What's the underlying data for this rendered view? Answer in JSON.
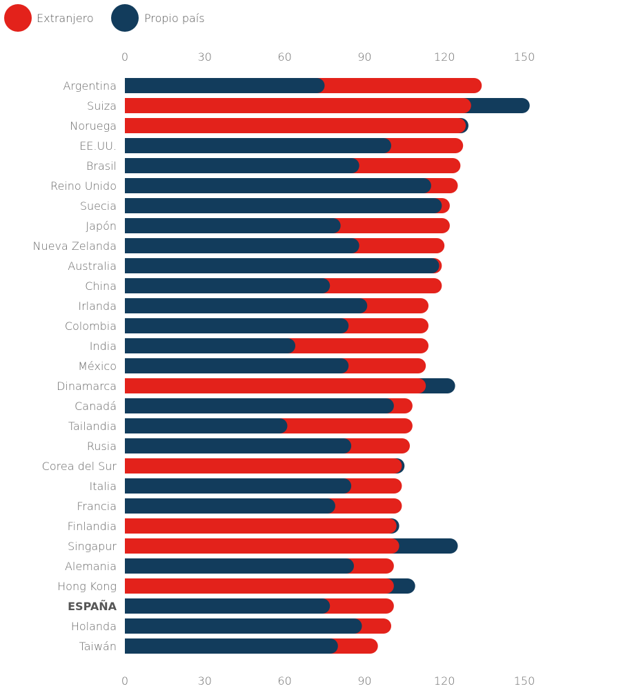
{
  "colors": {
    "foreign": "#e3221b",
    "own": "#123c5c"
  },
  "legend": [
    {
      "name": "Extranjero",
      "color": "#e3221b"
    },
    {
      "name": "Propio país",
      "color": "#123c5c"
    }
  ],
  "chart_data": {
    "type": "bar",
    "orientation": "horizontal",
    "title": "",
    "xlabel": "",
    "ylabel": "",
    "xlim": [
      0,
      150
    ],
    "xticks": [
      0,
      30,
      60,
      90,
      120,
      150
    ],
    "legend_position": "top-left",
    "highlight_category": "ESPAÑA",
    "categories": [
      "Argentina",
      "Suiza",
      "Noruega",
      "EE.UU.",
      "Brasil",
      "Reino Unido",
      "Suecia",
      "Japón",
      "Nueva Zelanda",
      "Australia",
      "China",
      "Irlanda",
      "Colombia",
      "India",
      "México",
      "Dinamarca",
      "Canadá",
      "Tailandia",
      "Rusia",
      "Corea del Sur",
      "Italia",
      "Francia",
      "Finlandia",
      "Singapur",
      "Alemania",
      "Hong Kong",
      "ESPAÑA",
      "Holanda",
      "Taiwán"
    ],
    "series": [
      {
        "name": "Extranjero",
        "color": "#e3221b",
        "values": [
          134,
          130,
          128,
          127,
          126,
          125,
          122,
          122,
          120,
          119,
          119,
          114,
          114,
          114,
          113,
          113,
          108,
          108,
          107,
          104,
          104,
          104,
          102,
          103,
          101,
          101,
          101,
          100,
          95
        ]
      },
      {
        "name": "Propio país",
        "color": "#123c5c",
        "values": [
          75,
          152,
          129,
          100,
          88,
          115,
          119,
          81,
          88,
          118,
          77,
          91,
          84,
          64,
          84,
          124,
          101,
          61,
          85,
          105,
          85,
          79,
          103,
          125,
          86,
          109,
          77,
          89,
          80
        ]
      }
    ]
  }
}
